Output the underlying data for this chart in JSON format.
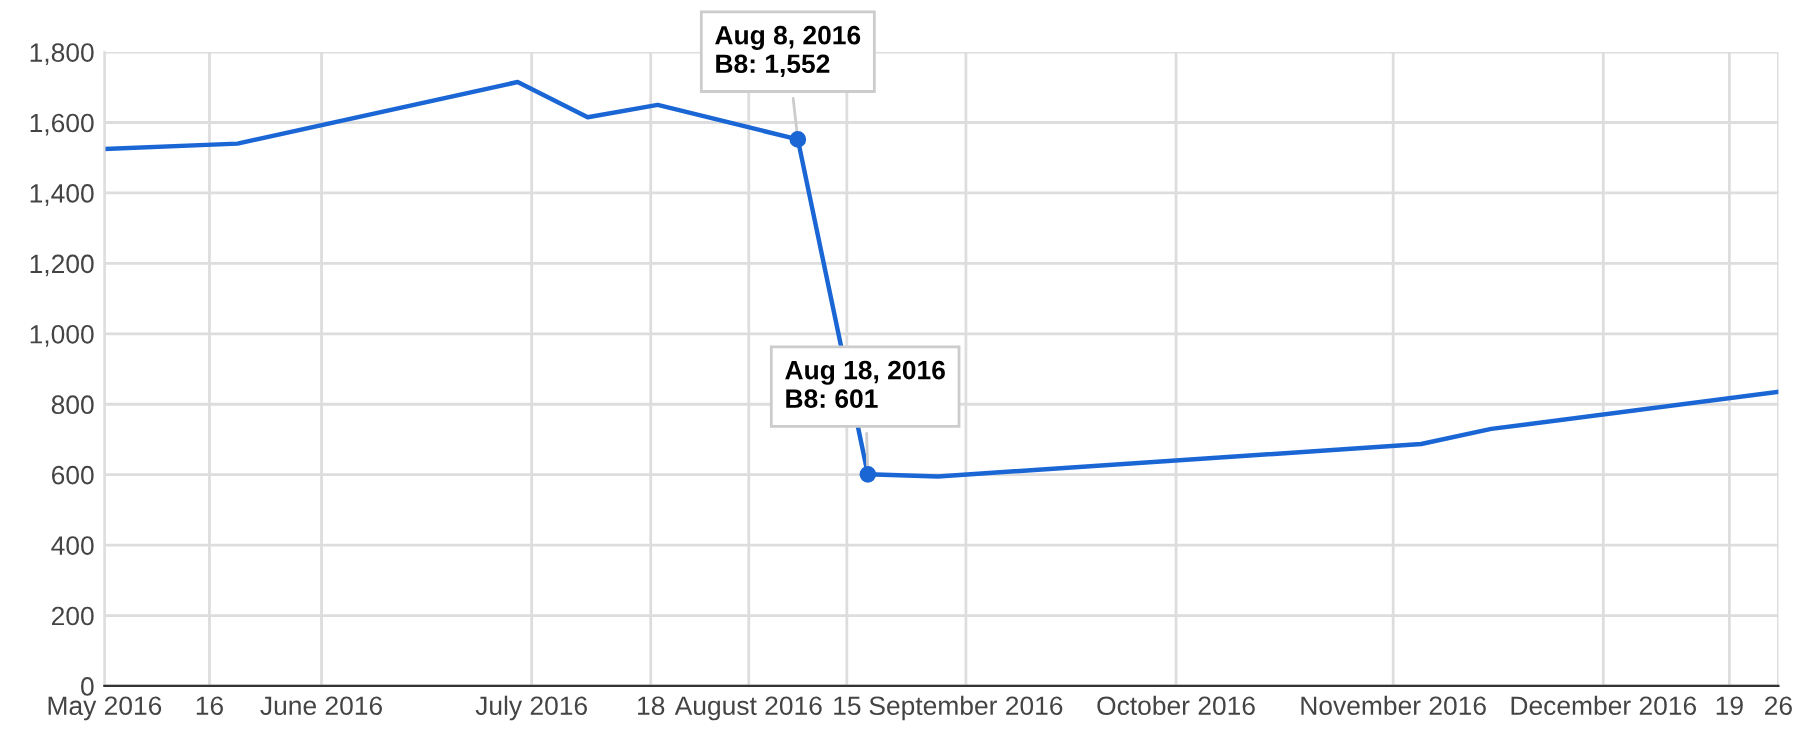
{
  "chart_data": {
    "type": "line",
    "x": [
      "2016-05-01",
      "2016-05-20",
      "2016-06-29",
      "2016-07-09",
      "2016-07-19",
      "2016-08-08",
      "2016-08-18",
      "2016-08-28",
      "2016-11-05",
      "2016-11-15",
      "2016-12-26"
    ],
    "series": [
      {
        "color": "#1a66d4",
        "values": [
          1525,
          1540,
          1715,
          1615,
          1650,
          1552,
          601,
          595,
          687,
          730,
          835
        ]
      }
    ],
    "xlim": [
      "2016-05-01",
      "2016-12-26"
    ],
    "xticks": [
      {
        "value": "2016-05-01",
        "label": "May 2016"
      },
      {
        "value": "2016-05-16",
        "label": "16"
      },
      {
        "value": "2016-06-01",
        "label": "June 2016"
      },
      {
        "value": "2016-07-01",
        "label": "July 2016"
      },
      {
        "value": "2016-07-18",
        "label": "18"
      },
      {
        "value": "2016-08-01",
        "label": "August 2016"
      },
      {
        "value": "2016-08-15",
        "label": "15"
      },
      {
        "value": "2016-09-01",
        "label": "September 2016"
      },
      {
        "value": "2016-10-01",
        "label": "October 2016"
      },
      {
        "value": "2016-11-01",
        "label": "November 2016"
      },
      {
        "value": "2016-12-01",
        "label": "December 2016"
      },
      {
        "value": "2016-12-19",
        "label": "19"
      },
      {
        "value": "2016-12-26",
        "label": "26"
      }
    ],
    "ylim": [
      0,
      1800
    ],
    "yticks": [
      {
        "value": 0,
        "label": "0"
      },
      {
        "value": 200,
        "label": "200"
      },
      {
        "value": 400,
        "label": "400"
      },
      {
        "value": 600,
        "label": "600"
      },
      {
        "value": 800,
        "label": "800"
      },
      {
        "value": 1000,
        "label": "1,000"
      },
      {
        "value": 1200,
        "label": "1,200"
      },
      {
        "value": 1400,
        "label": "1,400"
      },
      {
        "value": 1600,
        "label": "1,600"
      },
      {
        "value": 1800,
        "label": "1,800"
      }
    ],
    "grid": true,
    "marker": "none",
    "annotations": [
      {
        "text": "Aug 8, 2016\nB8: 1,552",
        "x": "2016-08-08",
        "y": 1552
      },
      {
        "text": "Aug 18, 2016\nB8: 601",
        "x": "2016-08-18",
        "y": 601
      }
    ]
  }
}
